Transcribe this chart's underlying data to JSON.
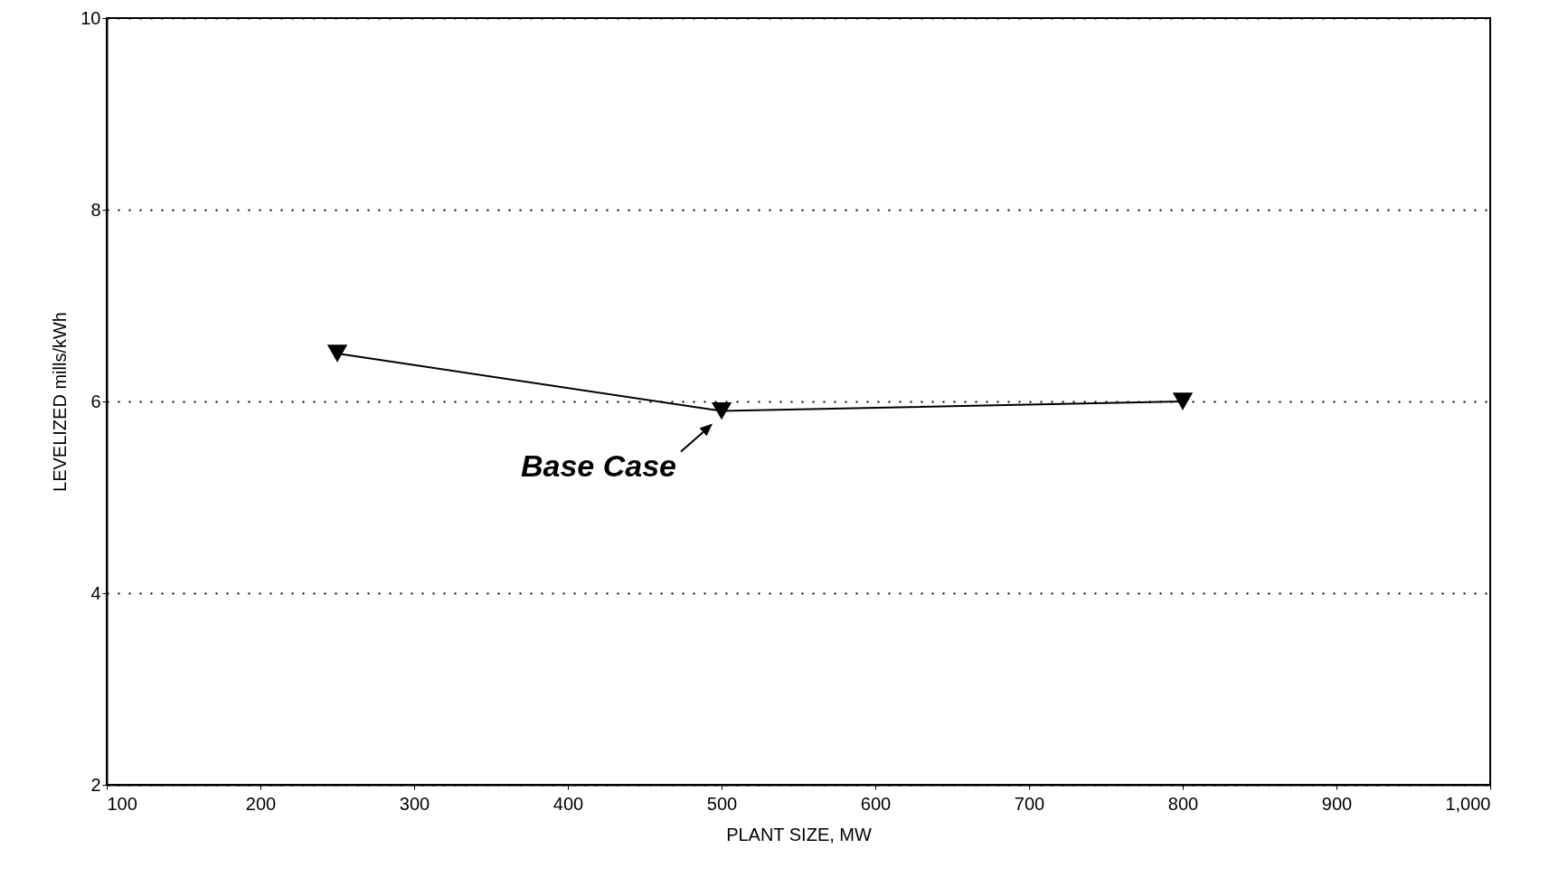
{
  "chart_data": {
    "type": "line",
    "xlabel": "PLANT SIZE, MW",
    "ylabel": "LEVELIZED mills/kWh",
    "x": [
      250,
      500,
      800
    ],
    "series": [
      {
        "color": "#000000",
        "values": [
          6.5,
          5.9,
          6.0
        ]
      }
    ],
    "xlim": [
      100,
      1000
    ],
    "xticks": [
      100,
      200,
      300,
      400,
      500,
      600,
      700,
      800,
      900,
      {
        "value": 1000,
        "label": "1,000"
      }
    ],
    "ylim": [
      2,
      10
    ],
    "yticks": [
      2,
      4,
      6,
      8,
      10
    ],
    "grid": "y",
    "marker": "triangle",
    "line_style": "solid",
    "annotations": [
      {
        "text": "Base Case",
        "x": 500,
        "y": 5.9
      }
    ]
  }
}
